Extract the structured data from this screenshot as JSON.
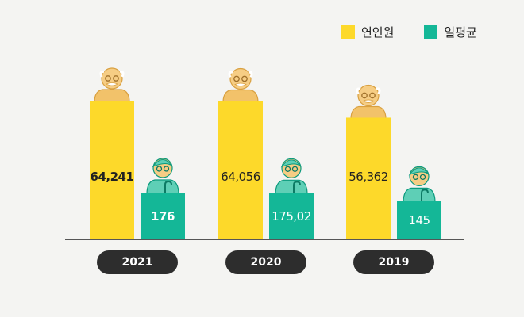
{
  "legend": [
    {
      "label": "연인원",
      "color": "#fdd92a"
    },
    {
      "label": "일평균",
      "color": "#14b797"
    }
  ],
  "colors": {
    "yearly": "#fdd92a",
    "daily": "#14b797",
    "pill": "#2d2d2d"
  },
  "chart_data": {
    "type": "bar",
    "title": "",
    "xlabel": "",
    "ylabel": "",
    "categories": [
      "2021",
      "2020",
      "2019"
    ],
    "series": [
      {
        "name": "연인원",
        "values": [
          64241,
          64056,
          56362
        ],
        "labels": [
          "64,241",
          "64,056",
          "56,362"
        ]
      },
      {
        "name": "일평균",
        "values": [
          176,
          175.02,
          145
        ],
        "labels": [
          "176",
          "175,02",
          "145"
        ]
      }
    ],
    "legend_position": "top-right",
    "grid": false,
    "icons": [
      "grandfather-icon",
      "grandmother-icon"
    ]
  }
}
